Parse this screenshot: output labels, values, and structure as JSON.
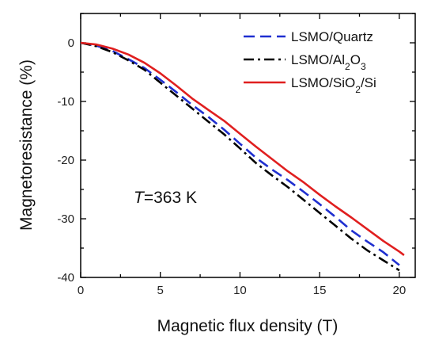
{
  "chart_data": {
    "type": "line",
    "title": "",
    "xlabel": "Magnetic flux density (T)",
    "ylabel": "Magnetoresistance (%)",
    "xlim": [
      0,
      21
    ],
    "ylim": [
      -40,
      5
    ],
    "xticks": [
      0,
      5,
      10,
      15,
      20
    ],
    "yticks": [
      0,
      -10,
      -20,
      -30,
      -40
    ],
    "grid": false,
    "legend_position": "top-right",
    "annotation": {
      "italic": "T",
      "text": "=363 K"
    },
    "series": [
      {
        "name": "LSMO/Quartz",
        "name_parts": [
          {
            "text": "LSMO/Quartz"
          }
        ],
        "color": "#1f2fd0",
        "style": "dashed",
        "x": [
          0,
          1,
          2,
          3,
          4,
          5,
          6,
          7,
          8,
          9,
          10,
          11,
          12,
          13,
          14,
          15,
          16,
          17,
          18,
          19,
          20
        ],
        "y": [
          0,
          -0.5,
          -1.4,
          -2.8,
          -4.3,
          -6.3,
          -8.4,
          -10.6,
          -12.6,
          -14.8,
          -17.2,
          -19.6,
          -21.6,
          -23.4,
          -25.4,
          -27.5,
          -29.7,
          -32.0,
          -33.9,
          -35.7,
          -37.9
        ]
      },
      {
        "name": "LSMO/Al2O3",
        "name_parts": [
          {
            "text": "LSMO/Al"
          },
          {
            "text": "2",
            "sub": true
          },
          {
            "text": "O"
          },
          {
            "text": "3",
            "sub": true
          }
        ],
        "color": "#000000",
        "style": "dashdot",
        "x": [
          0,
          1,
          2,
          3,
          4,
          5,
          6,
          7,
          8,
          9,
          10,
          11,
          12,
          13,
          14,
          15,
          16,
          17,
          18,
          19,
          20
        ],
        "y": [
          0,
          -0.6,
          -1.6,
          -3.0,
          -4.6,
          -6.8,
          -9.0,
          -11.2,
          -13.4,
          -15.6,
          -18.0,
          -20.5,
          -22.6,
          -24.6,
          -26.8,
          -29.0,
          -31.2,
          -33.4,
          -35.4,
          -37.1,
          -38.8
        ]
      },
      {
        "name": "LSMO/SiO2/Si",
        "name_parts": [
          {
            "text": "LSMO/SiO"
          },
          {
            "text": "2",
            "sub": true
          },
          {
            "text": "/Si"
          }
        ],
        "color": "#e01f1f",
        "style": "solid",
        "x": [
          0,
          1,
          2,
          3,
          4,
          5,
          6,
          7,
          8,
          9,
          10,
          11,
          12,
          13,
          14,
          15,
          16,
          17,
          18,
          19,
          20,
          20.3
        ],
        "y": [
          0,
          -0.3,
          -1.0,
          -2.0,
          -3.4,
          -5.2,
          -7.3,
          -9.5,
          -11.4,
          -13.3,
          -15.5,
          -17.7,
          -19.8,
          -21.9,
          -23.8,
          -25.9,
          -27.9,
          -29.8,
          -31.8,
          -33.8,
          -35.6,
          -36.2
        ]
      }
    ]
  }
}
